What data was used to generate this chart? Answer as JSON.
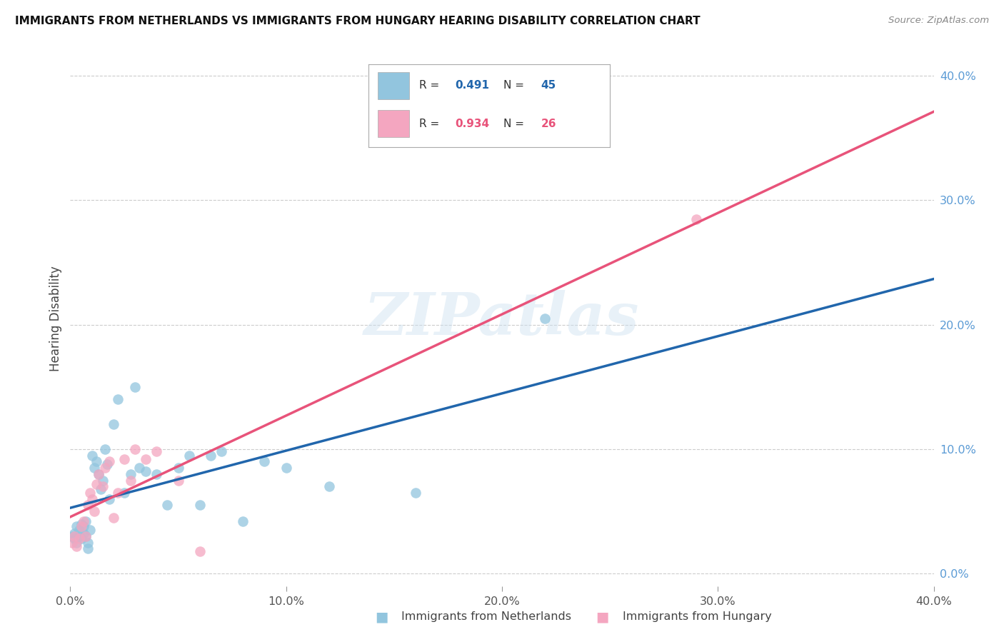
{
  "title": "IMMIGRANTS FROM NETHERLANDS VS IMMIGRANTS FROM HUNGARY HEARING DISABILITY CORRELATION CHART",
  "source": "Source: ZipAtlas.com",
  "ylabel": "Hearing Disability",
  "ytick_positions": [
    0.0,
    0.1,
    0.2,
    0.3,
    0.4
  ],
  "xtick_positions": [
    0.0,
    0.1,
    0.2,
    0.3,
    0.4
  ],
  "xlim": [
    0.0,
    0.4
  ],
  "ylim": [
    -0.01,
    0.42
  ],
  "legend_label1": "Immigrants from Netherlands",
  "legend_label2": "Immigrants from Hungary",
  "r1": 0.491,
  "n1": 45,
  "r2": 0.934,
  "n2": 26,
  "color_blue": "#92c5de",
  "color_pink": "#f4a6c0",
  "color_blue_line": "#2166ac",
  "color_pink_line": "#e8537a",
  "watermark": "ZIPatlas",
  "netherlands_x": [
    0.001,
    0.002,
    0.002,
    0.003,
    0.003,
    0.004,
    0.004,
    0.005,
    0.005,
    0.006,
    0.006,
    0.007,
    0.007,
    0.008,
    0.008,
    0.009,
    0.01,
    0.011,
    0.012,
    0.013,
    0.014,
    0.015,
    0.016,
    0.017,
    0.018,
    0.02,
    0.022,
    0.025,
    0.028,
    0.03,
    0.032,
    0.035,
    0.04,
    0.045,
    0.05,
    0.055,
    0.06,
    0.065,
    0.07,
    0.08,
    0.09,
    0.1,
    0.12,
    0.16,
    0.22
  ],
  "netherlands_y": [
    0.03,
    0.028,
    0.032,
    0.025,
    0.038,
    0.03,
    0.035,
    0.04,
    0.028,
    0.032,
    0.038,
    0.042,
    0.03,
    0.02,
    0.025,
    0.035,
    0.095,
    0.085,
    0.09,
    0.08,
    0.068,
    0.075,
    0.1,
    0.088,
    0.06,
    0.12,
    0.14,
    0.065,
    0.08,
    0.15,
    0.085,
    0.082,
    0.08,
    0.055,
    0.085,
    0.095,
    0.055,
    0.095,
    0.098,
    0.042,
    0.09,
    0.085,
    0.07,
    0.065,
    0.205
  ],
  "hungary_x": [
    0.001,
    0.002,
    0.003,
    0.004,
    0.005,
    0.006,
    0.007,
    0.008,
    0.009,
    0.01,
    0.011,
    0.012,
    0.013,
    0.015,
    0.016,
    0.018,
    0.02,
    0.022,
    0.025,
    0.028,
    0.03,
    0.035,
    0.04,
    0.05,
    0.06,
    0.29
  ],
  "hungary_y": [
    0.025,
    0.03,
    0.022,
    0.028,
    0.038,
    0.042,
    0.03,
    0.055,
    0.065,
    0.06,
    0.05,
    0.072,
    0.08,
    0.07,
    0.085,
    0.09,
    0.045,
    0.065,
    0.092,
    0.075,
    0.1,
    0.092,
    0.098,
    0.075,
    0.018,
    0.285
  ],
  "nl_line_x": [
    0.0,
    0.4
  ],
  "nl_line_y": [
    0.042,
    0.185
  ],
  "hu_line_x": [
    0.0,
    0.4
  ],
  "hu_line_y": [
    -0.01,
    0.39
  ]
}
